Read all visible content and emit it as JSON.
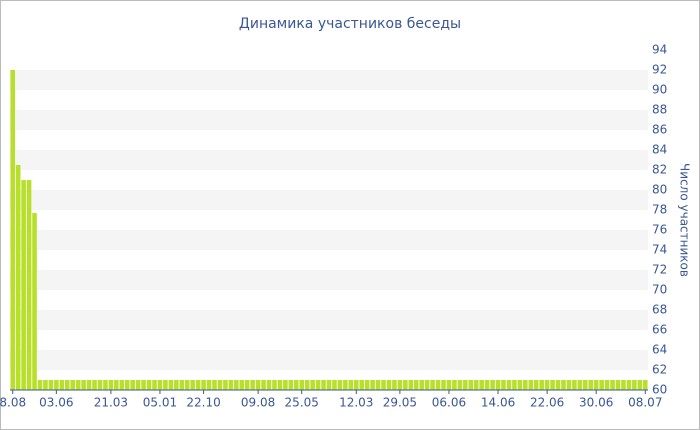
{
  "chart_data": {
    "type": "bar",
    "title": "Динамика участников беседы",
    "y_label": "Число участников",
    "color": "#b8e02a",
    "grid": true,
    "categories": [
      "8.08",
      null,
      null,
      null,
      null,
      null,
      null,
      null,
      "03.06",
      null,
      null,
      null,
      null,
      null,
      null,
      null,
      null,
      null,
      "21.03",
      null,
      null,
      null,
      null,
      null,
      null,
      null,
      null,
      "05.01",
      null,
      null,
      null,
      null,
      null,
      null,
      null,
      "22.10",
      null,
      null,
      null,
      null,
      null,
      null,
      null,
      null,
      null,
      "09.08",
      null,
      null,
      null,
      null,
      null,
      null,
      null,
      "25.05",
      null,
      null,
      null,
      null,
      null,
      null,
      null,
      null,
      null,
      "12.03",
      null,
      null,
      null,
      null,
      null,
      null,
      null,
      "29.05",
      null,
      null,
      null,
      null,
      null,
      null,
      null,
      null,
      "06.06",
      null,
      null,
      null,
      null,
      null,
      null,
      null,
      null,
      "14.06",
      null,
      null,
      null,
      null,
      null,
      null,
      null,
      null,
      "22.06",
      null,
      null,
      null,
      null,
      null,
      null,
      null,
      null,
      "30.06",
      null,
      null,
      null,
      null,
      null,
      null,
      null,
      null,
      "08.07"
    ],
    "values": [
      92,
      82.5,
      81,
      81,
      77.7,
      61,
      61,
      61,
      61,
      61,
      61,
      61,
      61,
      61,
      61,
      61,
      61,
      61,
      61,
      61,
      61,
      61,
      61,
      61,
      61,
      61,
      61,
      61,
      61,
      61,
      61,
      61,
      61,
      61,
      61,
      61,
      61,
      61,
      61,
      61,
      61,
      61,
      61,
      61,
      61,
      61,
      61,
      61,
      61,
      61,
      61,
      61,
      61,
      61,
      61,
      61,
      61,
      61,
      61,
      61,
      61,
      61,
      61,
      61,
      61,
      61,
      61,
      61,
      61,
      61,
      61,
      61,
      61,
      61,
      61,
      61,
      61,
      61,
      61,
      61,
      61,
      61,
      61,
      61,
      61,
      61,
      61,
      61,
      61,
      61,
      61,
      61,
      61,
      61,
      61,
      61,
      61,
      61,
      61,
      61,
      61,
      61,
      61,
      61,
      61,
      61,
      61,
      61,
      61,
      61,
      61,
      61,
      61,
      61,
      61,
      61,
      61
    ],
    "ylim": [
      60,
      94
    ],
    "yticks": [
      60,
      62,
      64,
      66,
      68,
      70,
      72,
      74,
      76,
      78,
      80,
      82,
      84,
      86,
      88,
      90,
      92,
      94
    ]
  }
}
